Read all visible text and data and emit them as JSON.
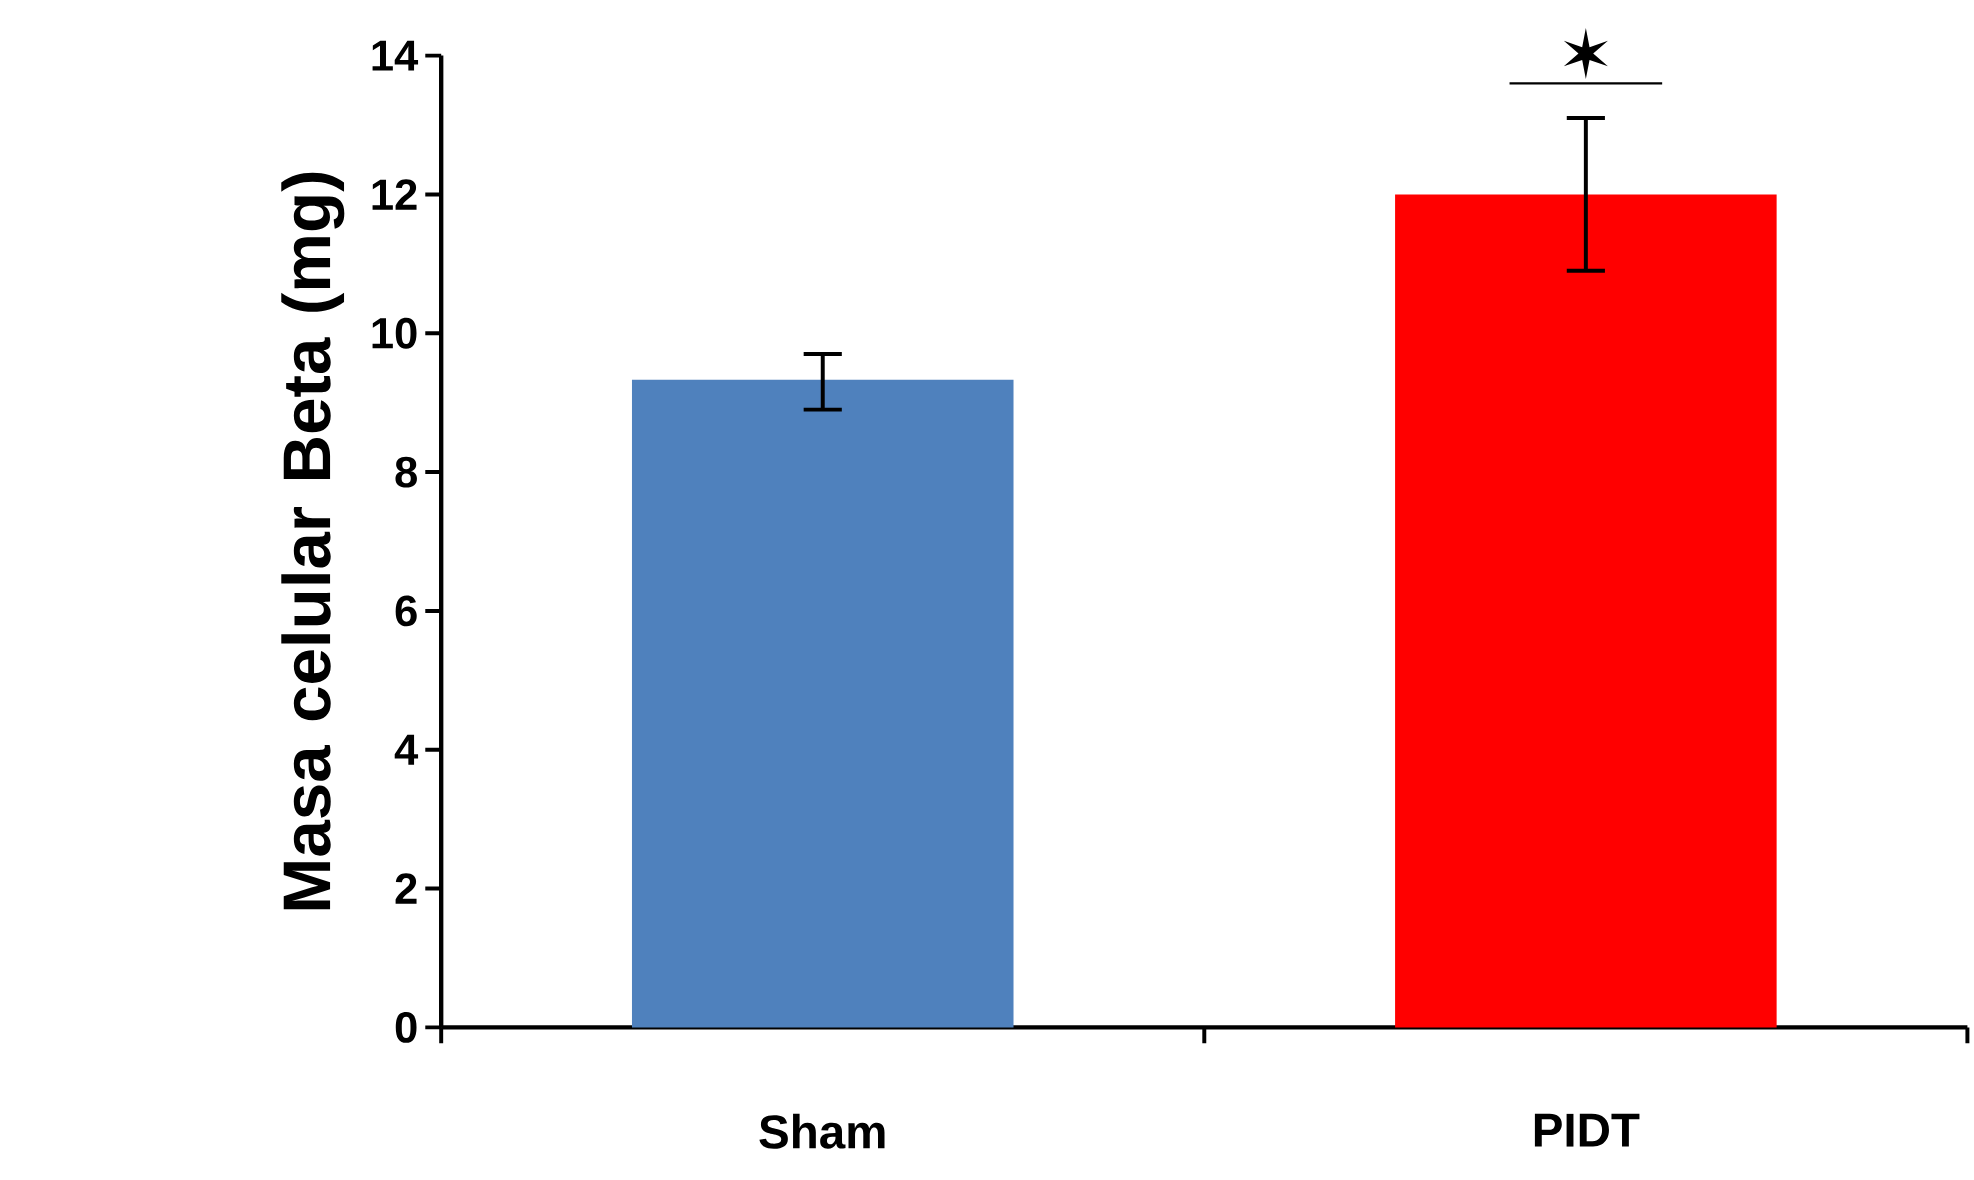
{
  "chart_data": {
    "type": "bar",
    "ylabel": "Masa celular Beta (mg)",
    "categories": [
      "Sham",
      "PIDT"
    ],
    "values": [
      9.33,
      12.0
    ],
    "colors": [
      "#4f81bd",
      "#ff0000"
    ],
    "errors": [
      [
        8.9,
        9.7
      ],
      [
        10.9,
        13.1
      ]
    ],
    "ylim": [
      0,
      14
    ],
    "yticks": [
      0,
      2,
      4,
      6,
      8,
      10,
      12,
      14
    ],
    "annotations": [
      "✶"
    ],
    "grid": false
  }
}
